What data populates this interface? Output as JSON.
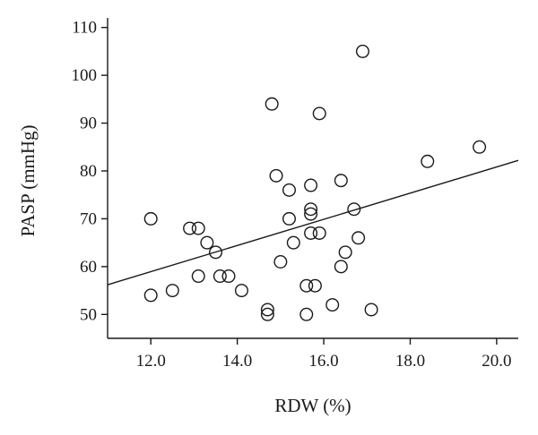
{
  "chart_data": {
    "type": "scatter",
    "xlabel": "RDW (%)",
    "ylabel": "PASP (mmHg)",
    "xlim": [
      11.0,
      20.5
    ],
    "ylim": [
      45,
      112
    ],
    "x_ticks": [
      12.0,
      14.0,
      16.0,
      18.0,
      20.0
    ],
    "x_tick_labels": [
      "12.0",
      "14.0",
      "16.0",
      "18.0",
      "20.0"
    ],
    "y_ticks": [
      50,
      60,
      70,
      80,
      90,
      100,
      110
    ],
    "y_tick_labels": [
      "50",
      "60",
      "70",
      "80",
      "90",
      "100",
      "110"
    ],
    "grid": false,
    "marker": "open-circle",
    "points": [
      {
        "x": 12.0,
        "y": 70
      },
      {
        "x": 12.0,
        "y": 54
      },
      {
        "x": 12.5,
        "y": 55
      },
      {
        "x": 12.9,
        "y": 68
      },
      {
        "x": 13.1,
        "y": 68
      },
      {
        "x": 13.1,
        "y": 58
      },
      {
        "x": 13.3,
        "y": 65
      },
      {
        "x": 13.5,
        "y": 63
      },
      {
        "x": 13.6,
        "y": 58
      },
      {
        "x": 13.8,
        "y": 58
      },
      {
        "x": 14.1,
        "y": 55
      },
      {
        "x": 14.7,
        "y": 51
      },
      {
        "x": 14.7,
        "y": 50
      },
      {
        "x": 14.8,
        "y": 94
      },
      {
        "x": 14.9,
        "y": 79
      },
      {
        "x": 15.0,
        "y": 61
      },
      {
        "x": 15.2,
        "y": 76
      },
      {
        "x": 15.2,
        "y": 70
      },
      {
        "x": 15.3,
        "y": 65
      },
      {
        "x": 15.6,
        "y": 56
      },
      {
        "x": 15.6,
        "y": 50
      },
      {
        "x": 15.7,
        "y": 77
      },
      {
        "x": 15.7,
        "y": 72
      },
      {
        "x": 15.7,
        "y": 71
      },
      {
        "x": 15.7,
        "y": 67
      },
      {
        "x": 15.8,
        "y": 56
      },
      {
        "x": 15.9,
        "y": 92
      },
      {
        "x": 15.9,
        "y": 67
      },
      {
        "x": 16.2,
        "y": 52
      },
      {
        "x": 16.4,
        "y": 78
      },
      {
        "x": 16.4,
        "y": 60
      },
      {
        "x": 16.5,
        "y": 63
      },
      {
        "x": 16.7,
        "y": 72
      },
      {
        "x": 16.8,
        "y": 66
      },
      {
        "x": 16.9,
        "y": 105
      },
      {
        "x": 17.1,
        "y": 51
      },
      {
        "x": 18.4,
        "y": 82
      },
      {
        "x": 19.6,
        "y": 85
      }
    ],
    "regression_line": {
      "x": [
        11.0,
        20.5
      ],
      "y": [
        56.2,
        82.2
      ]
    }
  }
}
